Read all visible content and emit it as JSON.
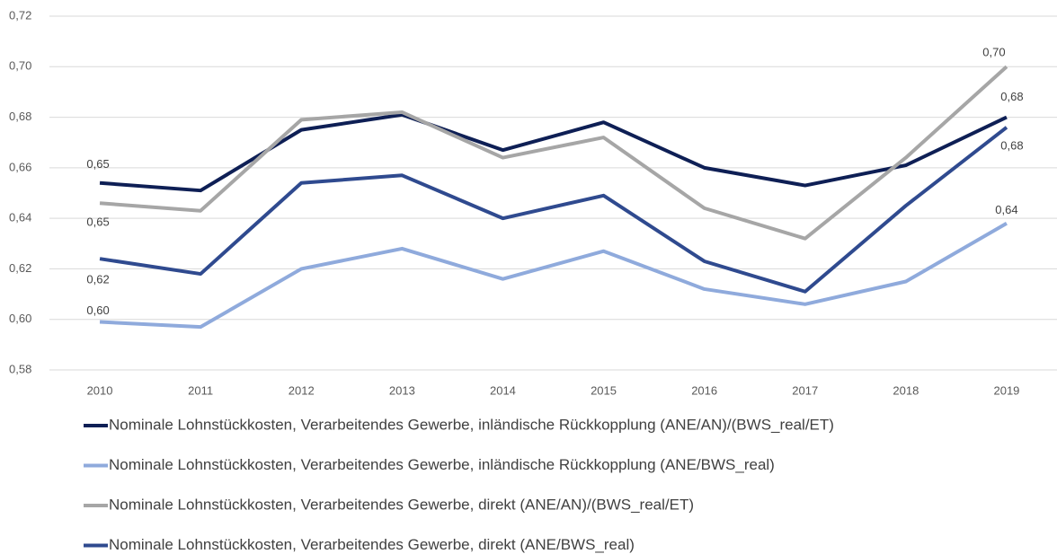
{
  "chart_data": {
    "type": "line",
    "categories": [
      "2010",
      "2011",
      "2012",
      "2013",
      "2014",
      "2015",
      "2016",
      "2017",
      "2018",
      "2019"
    ],
    "ylim": [
      0.58,
      0.72
    ],
    "yticks": [
      {
        "value": 0.58,
        "label": "0,58"
      },
      {
        "value": 0.6,
        "label": "0,60"
      },
      {
        "value": 0.62,
        "label": "0,62"
      },
      {
        "value": 0.64,
        "label": "0,64"
      },
      {
        "value": 0.66,
        "label": "0,66"
      },
      {
        "value": 0.68,
        "label": "0,68"
      },
      {
        "value": 0.7,
        "label": "0,70"
      },
      {
        "value": 0.72,
        "label": "0,72"
      }
    ],
    "grid": true,
    "series": [
      {
        "name": "Nominale Lohnstückkosten, Verarbeitendes Gewerbe, inländische Rückkopplung (ANE/AN)/(BWS_real/ET)",
        "color": "#0e1f55",
        "values": [
          0.654,
          0.651,
          0.675,
          0.681,
          0.667,
          0.678,
          0.66,
          0.653,
          0.661,
          0.68
        ],
        "value_labels": [
          "0,65",
          null,
          null,
          null,
          null,
          null,
          null,
          null,
          null,
          "0,68"
        ]
      },
      {
        "name": "Nominale Lohnstückkosten, Verarbeitendes Gewerbe, inländische Rückkopplung (ANE/BWS_real)",
        "color": "#8faadc",
        "values": [
          0.599,
          0.597,
          0.62,
          0.628,
          0.616,
          0.627,
          0.612,
          0.606,
          0.615,
          0.638
        ],
        "value_labels": [
          "0,60",
          null,
          null,
          null,
          null,
          null,
          null,
          null,
          null,
          "0,64"
        ]
      },
      {
        "name": "Nominale Lohnstückkosten, Verarbeitendes Gewerbe, direkt (ANE/AN)/(BWS_real/ET)",
        "color": "#a6a6a6",
        "values": [
          0.646,
          0.643,
          0.679,
          0.682,
          0.664,
          0.672,
          0.644,
          0.632,
          0.664,
          0.7
        ],
        "value_labels": [
          "0,65",
          null,
          null,
          null,
          null,
          null,
          null,
          null,
          null,
          "0,70"
        ]
      },
      {
        "name": "Nominale Lohnstückkosten, Verarbeitendes Gewerbe, direkt (ANE/BWS_real)",
        "color": "#2f4a8f",
        "values": [
          0.624,
          0.618,
          0.654,
          0.657,
          0.64,
          0.649,
          0.623,
          0.611,
          0.645,
          0.676
        ],
        "value_labels": [
          "0,62",
          null,
          null,
          null,
          null,
          null,
          null,
          null,
          null,
          "0,68"
        ]
      }
    ]
  }
}
